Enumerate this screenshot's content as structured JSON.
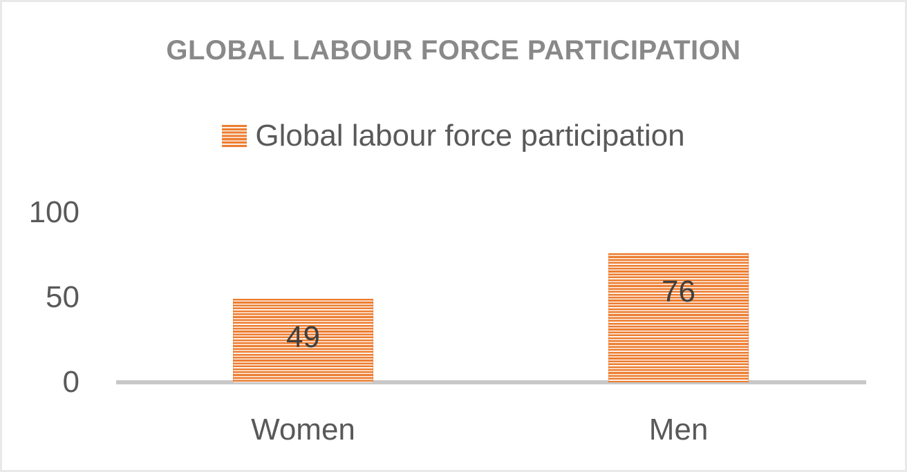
{
  "chart": {
    "title": "GLOBAL LABOUR FORCE PARTICIPATION",
    "legend_label": "Global labour force participation"
  },
  "chart_data": {
    "type": "bar",
    "title": "GLOBAL LABOUR FORCE PARTICIPATION",
    "legend": [
      "Global labour force participation"
    ],
    "legend_position": "top-center",
    "categories": [
      "Women",
      "Men"
    ],
    "series": [
      {
        "name": "Global labour force participation",
        "values": [
          49,
          76
        ]
      }
    ],
    "values": [
      49,
      76
    ],
    "data_labels": [
      "49",
      "76"
    ],
    "data_label_position": "inside-end",
    "xlabel": "",
    "ylabel": "",
    "yticks": [
      0,
      50,
      100
    ],
    "ylim": [
      0,
      100
    ],
    "grid": false,
    "bar_fill_pattern": "horizontal-stripes"
  },
  "colors": {
    "bar_orange": "#ED7D31",
    "title_gray": "#898989",
    "axis_text_gray": "#595959",
    "data_label_gray": "#404040",
    "axis_line_gray": "#C8C8C8",
    "frame_border": "#E9E9E9",
    "background": "#FFFFFF"
  }
}
